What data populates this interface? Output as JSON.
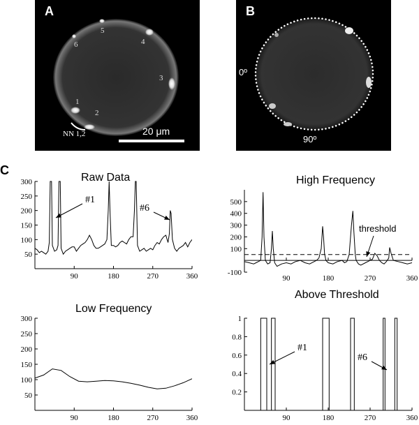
{
  "panel_a": {
    "letter": "A",
    "spot_labels": [
      "1",
      "2",
      "3",
      "4",
      "5",
      "6"
    ],
    "annotation": "NN 1,2",
    "scale_bar": "20 μm"
  },
  "panel_b": {
    "letter": "B",
    "angle_labels": [
      "0º",
      "90º"
    ]
  },
  "panel_c": {
    "letter": "C"
  },
  "chart_data": [
    {
      "id": "raw",
      "type": "line",
      "title": "Raw Data",
      "xlim": [
        0,
        360
      ],
      "ylim": [
        0,
        300
      ],
      "xticks": [
        90,
        180,
        270,
        360
      ],
      "yticks": [
        50,
        100,
        150,
        200,
        250,
        300
      ],
      "annotations": [
        "#1",
        "#6"
      ],
      "x": [
        0,
        5,
        10,
        15,
        20,
        25,
        30,
        33,
        35,
        38,
        40,
        45,
        50,
        53,
        55,
        58,
        60,
        65,
        70,
        75,
        80,
        85,
        90,
        95,
        100,
        105,
        110,
        115,
        120,
        125,
        130,
        135,
        140,
        145,
        150,
        155,
        160,
        165,
        168,
        170,
        172,
        175,
        180,
        185,
        190,
        195,
        200,
        205,
        210,
        215,
        220,
        225,
        228,
        230,
        232,
        235,
        240,
        245,
        250,
        255,
        260,
        265,
        270,
        275,
        280,
        285,
        290,
        295,
        300,
        305,
        308,
        310,
        312,
        315,
        320,
        325,
        330,
        335,
        340,
        345,
        350,
        355,
        360
      ],
      "y": [
        70,
        65,
        55,
        60,
        55,
        50,
        60,
        90,
        300,
        300,
        80,
        60,
        65,
        80,
        300,
        300,
        70,
        50,
        60,
        65,
        70,
        75,
        75,
        60,
        70,
        80,
        85,
        90,
        100,
        115,
        100,
        80,
        70,
        70,
        75,
        80,
        85,
        100,
        200,
        300,
        200,
        80,
        80,
        75,
        80,
        90,
        95,
        90,
        85,
        100,
        110,
        110,
        200,
        300,
        300,
        80,
        60,
        65,
        70,
        60,
        65,
        70,
        65,
        80,
        90,
        85,
        100,
        110,
        115,
        90,
        120,
        200,
        190,
        100,
        70,
        60,
        70,
        75,
        80,
        90,
        75,
        90,
        100
      ]
    },
    {
      "id": "high",
      "type": "line",
      "title": "High Frequency",
      "xlim": [
        0,
        360
      ],
      "ylim": [
        -100,
        600
      ],
      "xticks": [
        90,
        180,
        270,
        360
      ],
      "yticks": [
        -100,
        100,
        200,
        300,
        400,
        500
      ],
      "threshold": 50,
      "annotations": [
        "threshold"
      ],
      "x": [
        0,
        10,
        20,
        25,
        30,
        35,
        38,
        40,
        42,
        45,
        50,
        55,
        58,
        60,
        62,
        65,
        70,
        80,
        90,
        100,
        110,
        120,
        130,
        140,
        150,
        155,
        160,
        165,
        168,
        170,
        172,
        175,
        180,
        190,
        200,
        210,
        215,
        220,
        225,
        230,
        233,
        235,
        238,
        240,
        245,
        250,
        260,
        265,
        270,
        275,
        280,
        285,
        290,
        295,
        300,
        305,
        310,
        312,
        315,
        320,
        330,
        340,
        350,
        360
      ],
      "y": [
        -10,
        -20,
        -30,
        -20,
        -10,
        0,
        200,
        580,
        200,
        0,
        -30,
        -20,
        100,
        250,
        100,
        -20,
        -50,
        -30,
        -20,
        -30,
        -10,
        0,
        -20,
        -30,
        -10,
        0,
        20,
        100,
        290,
        200,
        60,
        0,
        -20,
        -30,
        -10,
        0,
        -20,
        -10,
        50,
        300,
        420,
        250,
        50,
        0,
        -30,
        -40,
        -20,
        -10,
        0,
        10,
        60,
        40,
        0,
        -20,
        -30,
        -10,
        20,
        110,
        60,
        0,
        -10,
        -20,
        -30,
        -20
      ]
    },
    {
      "id": "low",
      "type": "line",
      "title": "Low Frequency",
      "xlim": [
        0,
        360
      ],
      "ylim": [
        0,
        300
      ],
      "xticks": [
        90,
        180,
        270,
        360
      ],
      "yticks": [
        50,
        100,
        150,
        200,
        250,
        300
      ],
      "x": [
        0,
        20,
        40,
        60,
        80,
        100,
        120,
        140,
        160,
        180,
        200,
        220,
        240,
        260,
        280,
        300,
        320,
        340,
        360
      ],
      "y": [
        105,
        115,
        135,
        130,
        110,
        95,
        93,
        95,
        97,
        96,
        93,
        88,
        82,
        75,
        70,
        72,
        80,
        90,
        103
      ]
    },
    {
      "id": "above",
      "type": "line",
      "title": "Above Threshold",
      "xlim": [
        0,
        360
      ],
      "ylim": [
        0,
        1
      ],
      "xticks": [
        90,
        180,
        270,
        360
      ],
      "yticks": [
        0.2,
        0.4,
        0.6,
        0.8,
        1
      ],
      "annotations": [
        "#1",
        "#6"
      ],
      "pulses": [
        [
          35,
          48
        ],
        [
          58,
          66
        ],
        [
          168,
          182
        ],
        [
          228,
          236
        ],
        [
          298,
          302
        ],
        [
          323,
          328
        ]
      ]
    }
  ]
}
